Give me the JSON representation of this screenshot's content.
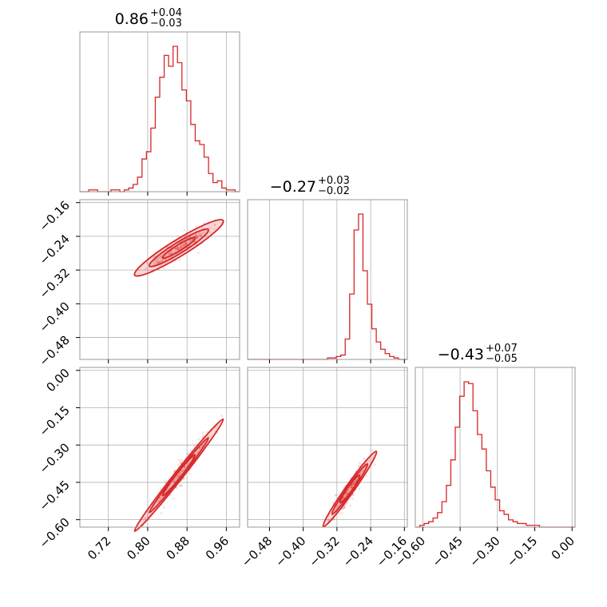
{
  "chart_data": {
    "type": "corner",
    "color": "#d62728",
    "grid": true,
    "parameters": [
      {
        "median": "0.86",
        "plus": "+0.04",
        "minus": "−0.03",
        "range": [
          0.662,
          0.987
        ],
        "ticks": [
          0.72,
          0.8,
          0.88,
          0.96
        ],
        "tick_labels": [
          "0.72",
          "0.80",
          "0.88",
          "0.96"
        ]
      },
      {
        "median": "−0.27",
        "plus": "+0.03",
        "minus": "−0.02",
        "range": [
          -0.532,
          -0.153
        ],
        "ticks": [
          -0.48,
          -0.4,
          -0.32,
          -0.24,
          -0.16
        ],
        "tick_labels": [
          "−0.48",
          "−0.40",
          "−0.32",
          "−0.24",
          "−0.16"
        ]
      },
      {
        "median": "−0.43",
        "plus": "+0.07",
        "minus": "−0.05",
        "range": [
          -0.63,
          0.012
        ],
        "ticks": [
          -0.6,
          -0.45,
          -0.3,
          -0.15,
          0.0
        ],
        "tick_labels": [
          "−0.60",
          "−0.45",
          "−0.30",
          "−0.15",
          "0.00"
        ]
      }
    ],
    "histograms": [
      {
        "param": 0,
        "counts": [
          0,
          0,
          1,
          1,
          0,
          0,
          0,
          1,
          1,
          0,
          1,
          2,
          4,
          8,
          18,
          22,
          35,
          52,
          63,
          75,
          69,
          80,
          71,
          56,
          50,
          37,
          28,
          26,
          19,
          10,
          5,
          6,
          2,
          1,
          1,
          0
        ]
      },
      {
        "param": 1,
        "counts": [
          0,
          0,
          0,
          0,
          0,
          0,
          0,
          0,
          0,
          0,
          0,
          0,
          0,
          0,
          0,
          0,
          0,
          0,
          1,
          1,
          2,
          3,
          14,
          45,
          89,
          100,
          61,
          38,
          21,
          12,
          7,
          4,
          2,
          1,
          0,
          0
        ]
      },
      {
        "param": 2,
        "counts": [
          0,
          1,
          2,
          3,
          5,
          8,
          14,
          23,
          37,
          55,
          72,
          80,
          79,
          64,
          51,
          43,
          31,
          22,
          15,
          9,
          7,
          4,
          3,
          2,
          2,
          1,
          1,
          1,
          0,
          0,
          0,
          0,
          0,
          0,
          0,
          0
        ]
      }
    ],
    "scatter": [
      {
        "x_param": 0,
        "y_param": 1,
        "slope": 0.72,
        "intercept": -0.889,
        "sd_major": 0.03,
        "sd_minor": 0.009
      },
      {
        "x_param": 0,
        "y_param": 2,
        "slope": 2.5,
        "intercept": -2.58,
        "sd_major": 0.03,
        "sd_minor": 0.008
      },
      {
        "x_param": 1,
        "y_param": 2,
        "slope": 2.4,
        "intercept": 0.218,
        "sd_major": 0.021,
        "sd_minor": 0.008
      }
    ]
  }
}
